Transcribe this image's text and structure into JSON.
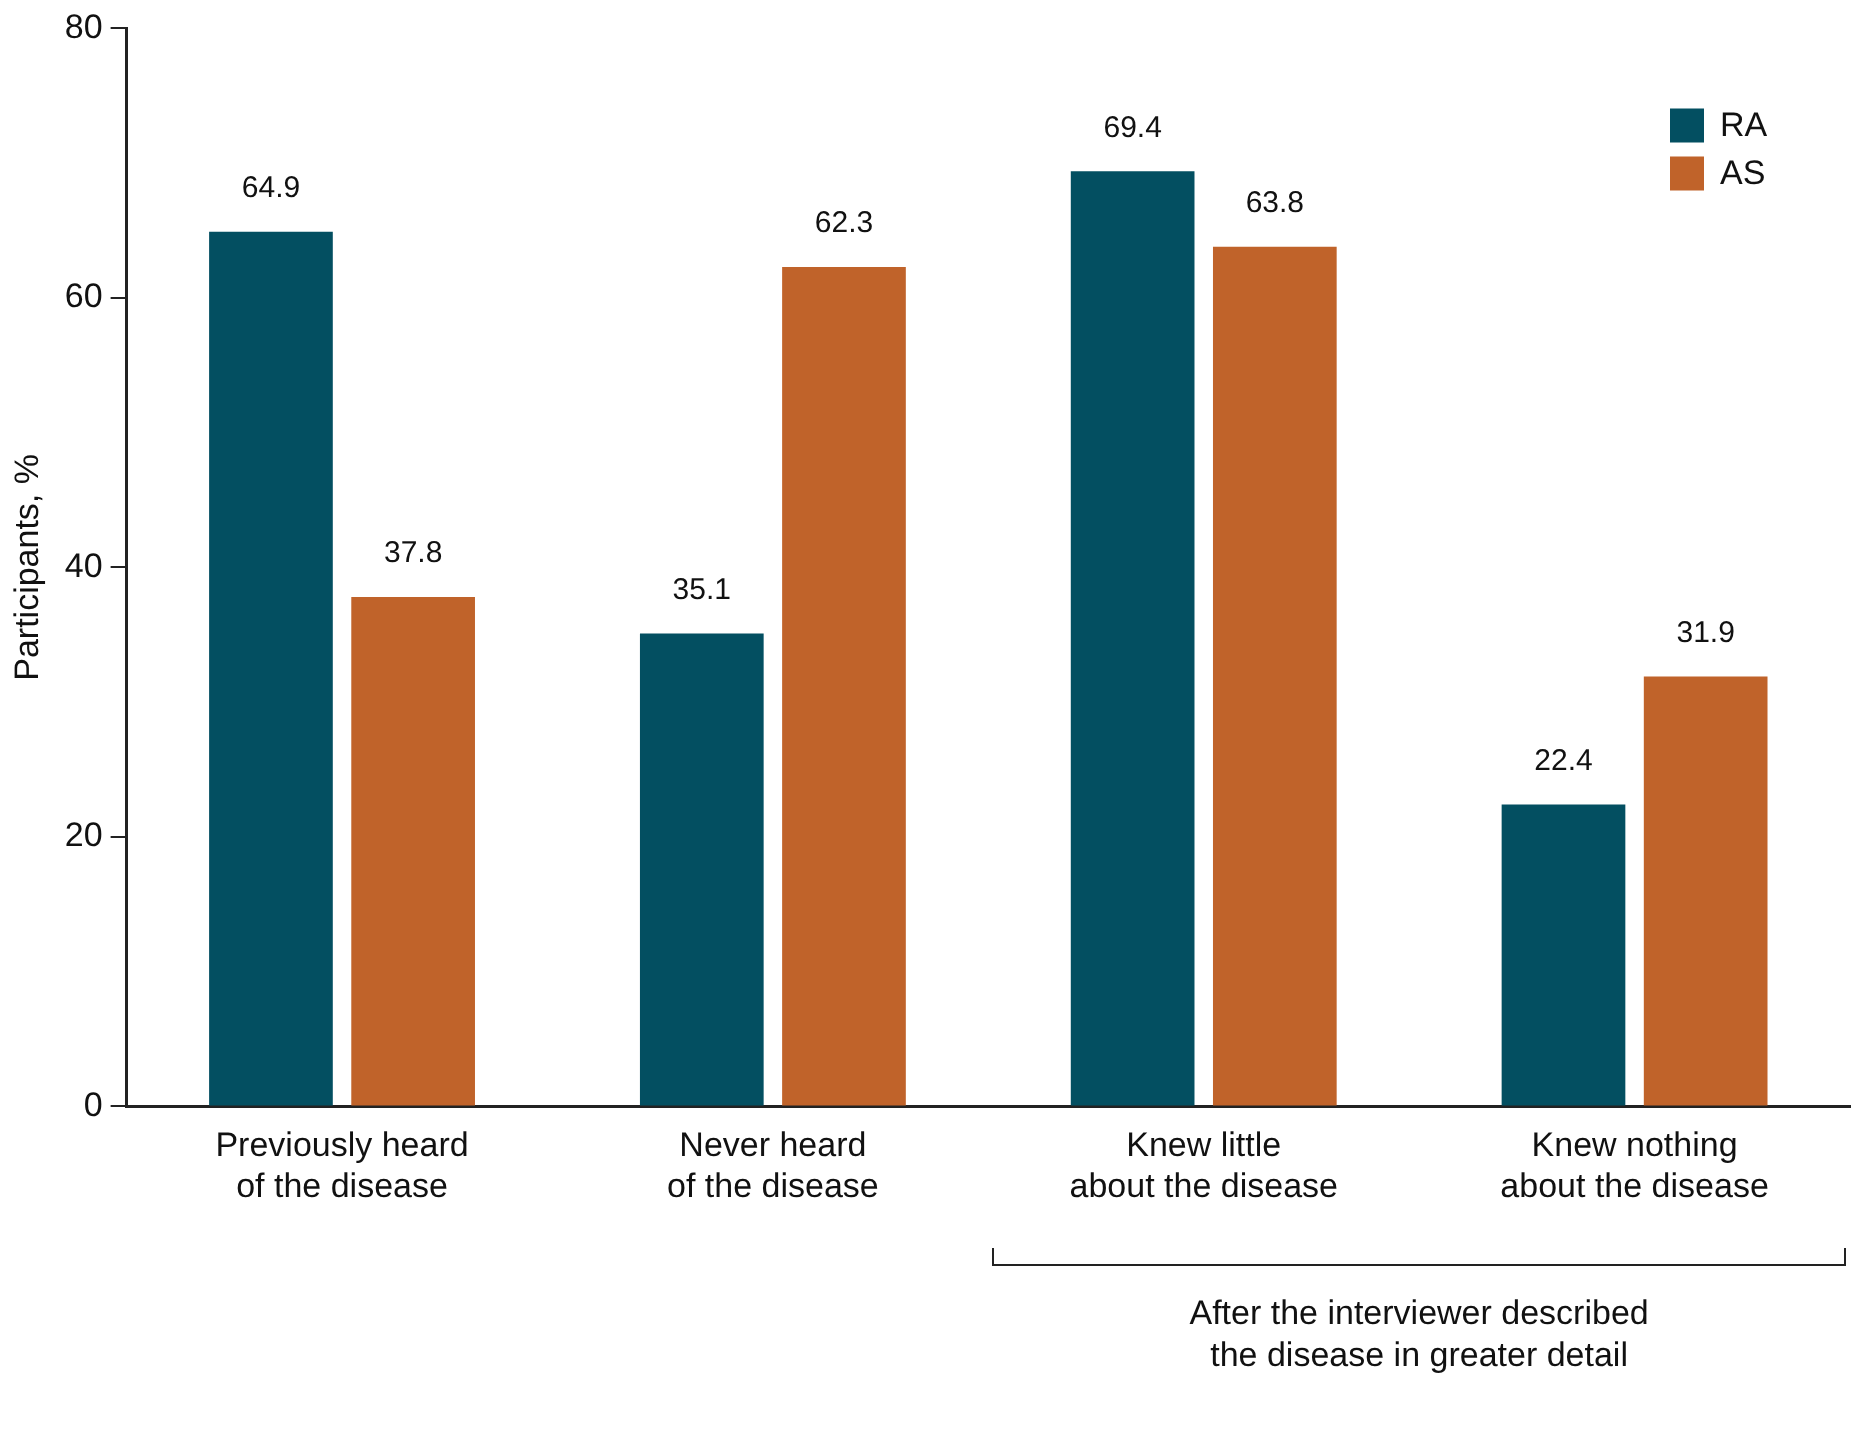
{
  "chart_data": {
    "type": "bar",
    "categories": [
      "Previously heard\nof the disease",
      "Never heard\nof the disease",
      "Knew little\nabout the disease",
      "Knew nothing\nabout the disease"
    ],
    "series": [
      {
        "name": "RA",
        "color": "#034f61",
        "values": [
          64.9,
          35.1,
          69.4,
          22.4
        ]
      },
      {
        "name": "AS",
        "color": "#c0632a",
        "values": [
          37.8,
          62.3,
          63.8,
          31.9
        ]
      }
    ],
    "ylabel": "Participants, %",
    "ylim": [
      0,
      80
    ],
    "yticks": [
      0,
      20,
      40,
      60,
      80
    ],
    "grid": false,
    "legend": "top right",
    "data_labels": true,
    "annotations": [
      "After the interviewer described\nthe disease in greater detail"
    ]
  }
}
